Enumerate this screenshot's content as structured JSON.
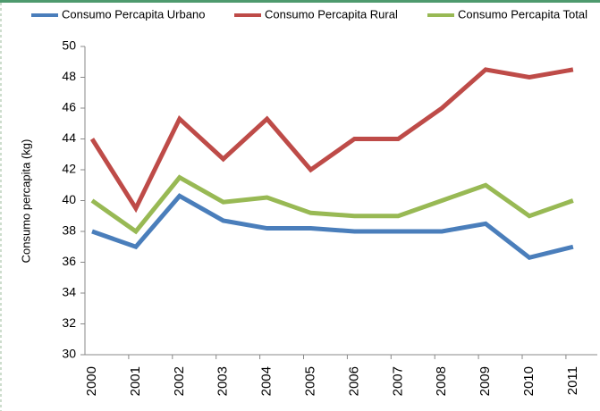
{
  "chart_data": {
    "type": "line",
    "y_label": "Consumo percapita (kg)",
    "categories": [
      "2000",
      "2001",
      "2002",
      "2003",
      "2004",
      "2005",
      "2006",
      "2007",
      "2008",
      "2009",
      "2010",
      "2011"
    ],
    "series": [
      {
        "name": "Consumo Percapita  Urbano",
        "color": "#4a7ebb",
        "values": [
          38,
          37,
          40.3,
          38.7,
          38.2,
          38.2,
          38,
          38,
          38,
          38.5,
          36.3,
          37
        ]
      },
      {
        "name": "Consumo Percapita  Rural",
        "color": "#be4b48",
        "values": [
          44,
          39.5,
          45.3,
          42.7,
          45.3,
          42,
          44,
          44,
          46,
          48.5,
          48,
          48.5
        ]
      },
      {
        "name": "Consumo Percapita  Total",
        "color": "#98b954",
        "values": [
          40,
          38,
          41.5,
          39.9,
          40.2,
          39.2,
          39,
          39,
          40,
          41,
          39,
          40
        ]
      }
    ],
    "ylim": [
      30,
      50
    ],
    "yticks": [
      30,
      32,
      34,
      36,
      38,
      40,
      42,
      44,
      46,
      48,
      50
    ],
    "legend": "top",
    "grid": false
  }
}
